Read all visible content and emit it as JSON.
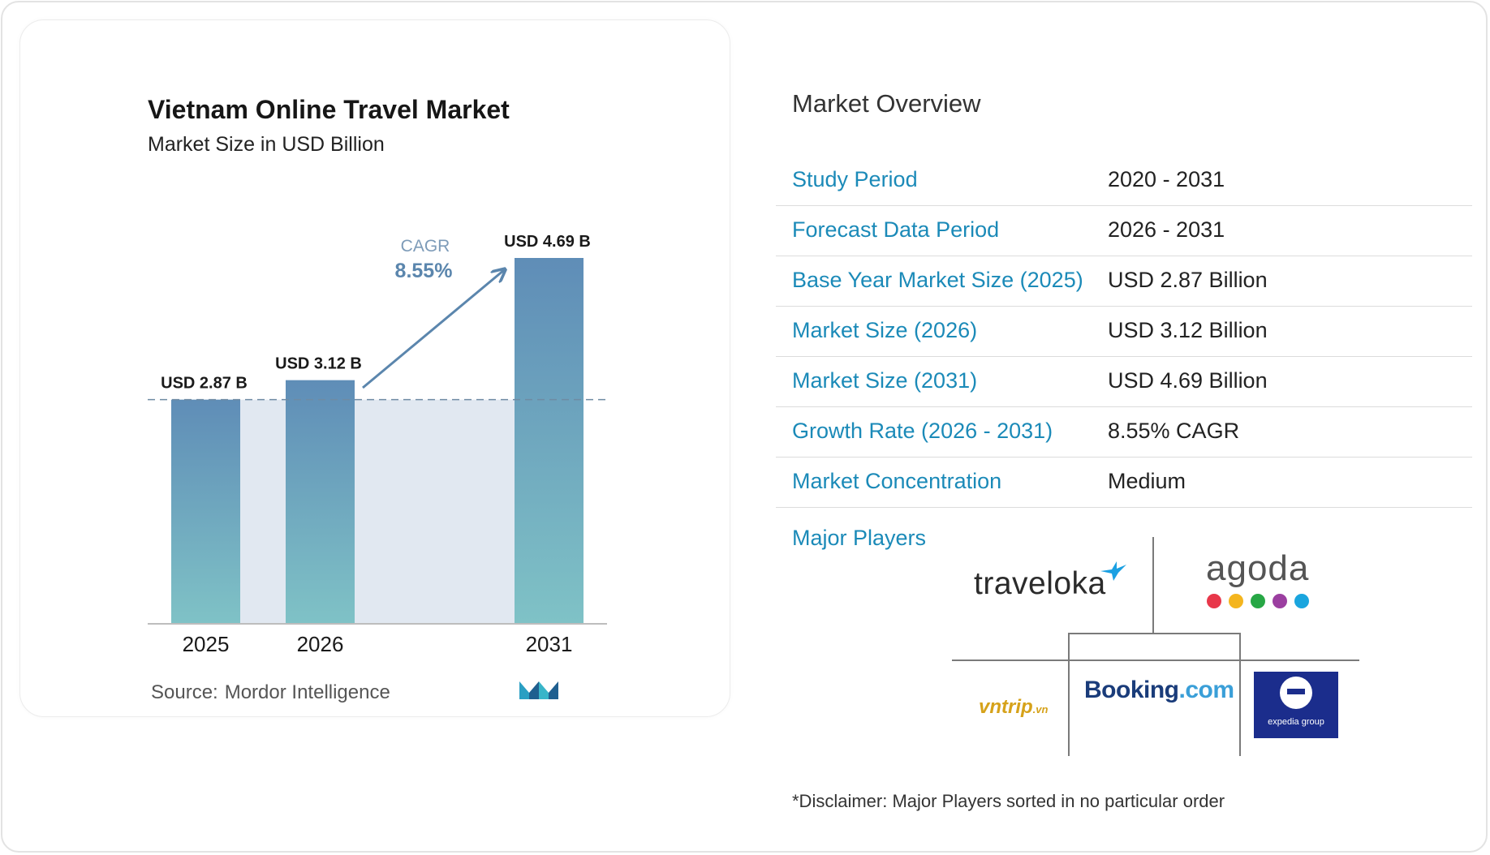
{
  "chart_data": {
    "type": "bar",
    "title": "Vietnam Online Travel Market",
    "subtitle": "Market Size in USD Billion",
    "categories": [
      "2025",
      "2026",
      "2031"
    ],
    "values": [
      2.87,
      3.12,
      4.69
    ],
    "data_labels": [
      "USD 2.87 B",
      "USD 3.12 B",
      "USD 4.69 B"
    ],
    "annotation": {
      "label": "CAGR",
      "value": "8.55%"
    },
    "ylim": [
      0,
      4.69
    ],
    "grid": false,
    "colors": {
      "bar_top": "#5f8db7",
      "bar_bottom": "#7fc2c6",
      "band": "#e1e8f1",
      "arrow": "#5b86ad",
      "cagr_label": "#7d9bb8",
      "cagr_value": "#5b86ad",
      "axis": "#bdbdbd",
      "dash": "#6f8ba3"
    }
  },
  "source": {
    "label": "Source:",
    "value": "Mordor Intelligence",
    "logo_icon": "mordor-intelligence-logo"
  },
  "overview": {
    "title": "Market Overview",
    "rows": [
      {
        "label": "Study Period",
        "value": "2020 - 2031"
      },
      {
        "label": "Forecast Data Period",
        "value": "2026 - 2031"
      },
      {
        "label": "Base Year Market Size (2025)",
        "value": "USD 2.87 Billion"
      },
      {
        "label": "Market Size (2026)",
        "value": "USD 3.12 Billion"
      },
      {
        "label": "Market Size (2031)",
        "value": "USD 4.69 Billion"
      },
      {
        "label": "Growth Rate (2026 - 2031)",
        "value": "8.55% CAGR"
      },
      {
        "label": "Market Concentration",
        "value": "Medium"
      }
    ],
    "label_color": "#1b8ab8"
  },
  "players": {
    "label": "Major Players",
    "logos": {
      "traveloka": "traveloka",
      "agoda": "agoda",
      "booking_main": "Booking",
      "booking_suffix": ".com",
      "vntrip_main": "vntrip",
      "vntrip_suffix": ".vn",
      "expedia": "expedia group"
    },
    "agoda_dot_colors": [
      "#e8374a",
      "#f4b51e",
      "#27a745",
      "#9b3fa0",
      "#1aa5de"
    ]
  },
  "disclaimer": "*Disclaimer: Major Players sorted in no particular order"
}
